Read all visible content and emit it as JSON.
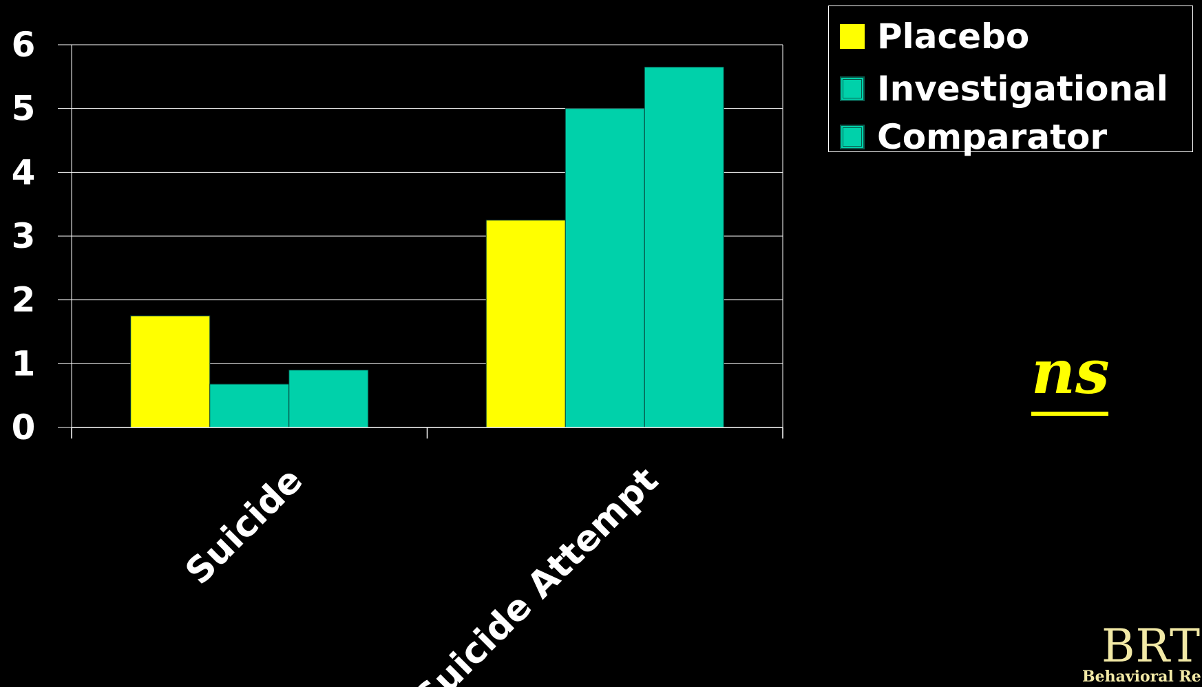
{
  "chart_data": {
    "type": "bar",
    "categories": [
      "Suicide",
      "Suicide Attempt"
    ],
    "series": [
      {
        "name": "Placebo",
        "values": [
          1.75,
          3.25
        ],
        "color": "#ffff00"
      },
      {
        "name": "Investigational",
        "values": [
          0.68,
          5.0
        ],
        "color": "#00d1aa"
      },
      {
        "name": "Comparator",
        "values": [
          0.9,
          5.65
        ],
        "color": "#00d1aa"
      }
    ],
    "ylim": [
      0,
      6
    ],
    "yticks": [
      "0",
      "1",
      "2",
      "3",
      "4",
      "5",
      "6"
    ],
    "grid": true,
    "legend_position": "top-right",
    "title": "",
    "xlabel": "",
    "ylabel": ""
  },
  "annotation": {
    "significance": "ns",
    "color": "#ffff00"
  },
  "logo": {
    "mark": "BRT",
    "subtitle": "Behavioral Re"
  }
}
